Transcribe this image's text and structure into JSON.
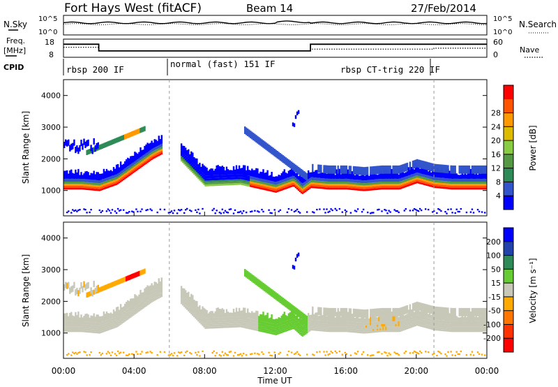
{
  "header": {
    "station": "Fort Hays West (fitACF)",
    "beam": "Beam 14",
    "date": "27/Feb/2014"
  },
  "nsky_panel": {
    "left_label": "N.Sky",
    "right_label": "N.Search",
    "left_ticks": [
      "10^5",
      "10^0"
    ],
    "right_ticks": [
      "10^5",
      "10^0"
    ]
  },
  "freq_panel": {
    "left_label_1": "Freq.",
    "left_label_2": "[MHz]",
    "right_label": "Nave",
    "left_ticks": [
      "18",
      "8"
    ],
    "right_ticks": [
      "60",
      "0"
    ]
  },
  "cpid": {
    "label": "CPID",
    "segments": [
      {
        "start_hour": 0,
        "end_hour": 6,
        "text": "rbsp 200 IF"
      },
      {
        "start_hour": 6,
        "end_hour": 21,
        "text": "normal (fast) 151 IF"
      },
      {
        "start_hour": 14,
        "end_hour": 21,
        "text": "rbsp CT-trig 220 IF"
      }
    ]
  },
  "time_axis": {
    "label": "Time UT",
    "ticks": [
      "00:00",
      "04:00",
      "08:00",
      "12:00",
      "16:00",
      "20:00",
      "00:00"
    ]
  },
  "colors": {
    "power": [
      "#0000ff",
      "#3355cc",
      "#2e8b57",
      "#559944",
      "#88cc44",
      "#ddbb00",
      "#ff9900",
      "#ff5500",
      "#ff0000"
    ],
    "velocity": [
      "#0000ff",
      "#2244aa",
      "#2e8b57",
      "#66cc33",
      "#c8c8b8",
      "#ffaa00",
      "#ff7700",
      "#ff3300",
      "#ff0000"
    ]
  },
  "chart_data": [
    {
      "type": "heatmap",
      "title": "Power",
      "ylabel": "Slant Range [km]",
      "xlabel": "",
      "xlim": [
        0,
        24
      ],
      "ylim": [
        200,
        4500
      ],
      "yticks": [
        "1000",
        "2000",
        "3000",
        "4000"
      ],
      "colorbar_label": "Power [dB]",
      "colorbar_ticks": [
        "4",
        "8",
        "12",
        "16",
        "20",
        "24",
        "28"
      ],
      "main_echo_band": {
        "hours": [
          0,
          1,
          2,
          3,
          4,
          5,
          6,
          8,
          10,
          12,
          13,
          13.5,
          14,
          15,
          16,
          17,
          18,
          19,
          20,
          21,
          22,
          23,
          24
        ],
        "range_km": [
          1150,
          1150,
          1100,
          1300,
          1700,
          2100,
          2400,
          1250,
          1300,
          1050,
          1250,
          1000,
          1200,
          1150,
          1150,
          1100,
          1150,
          1150,
          1350,
          1200,
          1150,
          1150,
          1150
        ]
      }
    },
    {
      "type": "heatmap",
      "title": "Velocity",
      "ylabel": "Slant Range [km]",
      "xlabel": "Time UT",
      "xlim": [
        0,
        24
      ],
      "ylim": [
        200,
        4500
      ],
      "yticks": [
        "1000",
        "2000",
        "3000",
        "4000"
      ],
      "colorbar_label": "Velocity [m s⁻¹]",
      "colorbar_ticks": [
        "200",
        "100",
        "50",
        "15",
        "-15",
        "-50",
        "-100",
        "-200"
      ]
    }
  ]
}
